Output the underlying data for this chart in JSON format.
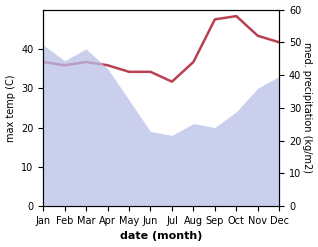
{
  "months": [
    "Jan",
    "Feb",
    "Mar",
    "Apr",
    "May",
    "Jun",
    "Jul",
    "Aug",
    "Sep",
    "Oct",
    "Nov",
    "Dec"
  ],
  "max_temp": [
    41,
    37,
    40,
    35,
    27,
    19,
    18,
    21,
    20,
    24,
    30,
    33
  ],
  "precipitation": [
    44,
    43,
    44,
    43,
    41,
    41,
    38,
    44,
    57,
    58,
    52,
    50
  ],
  "line_color": "#b94050",
  "fill_color": "#b8c0e8",
  "fill_alpha": 0.75,
  "ylabel_left": "max temp (C)",
  "ylabel_right": "med. precipitation (kg/m2)",
  "xlabel": "date (month)",
  "ylim_left": [
    0,
    50
  ],
  "ylim_right": [
    0,
    60
  ],
  "yticks_left": [
    0,
    10,
    20,
    30,
    40
  ],
  "yticks_right": [
    0,
    10,
    20,
    30,
    40,
    50,
    60
  ]
}
